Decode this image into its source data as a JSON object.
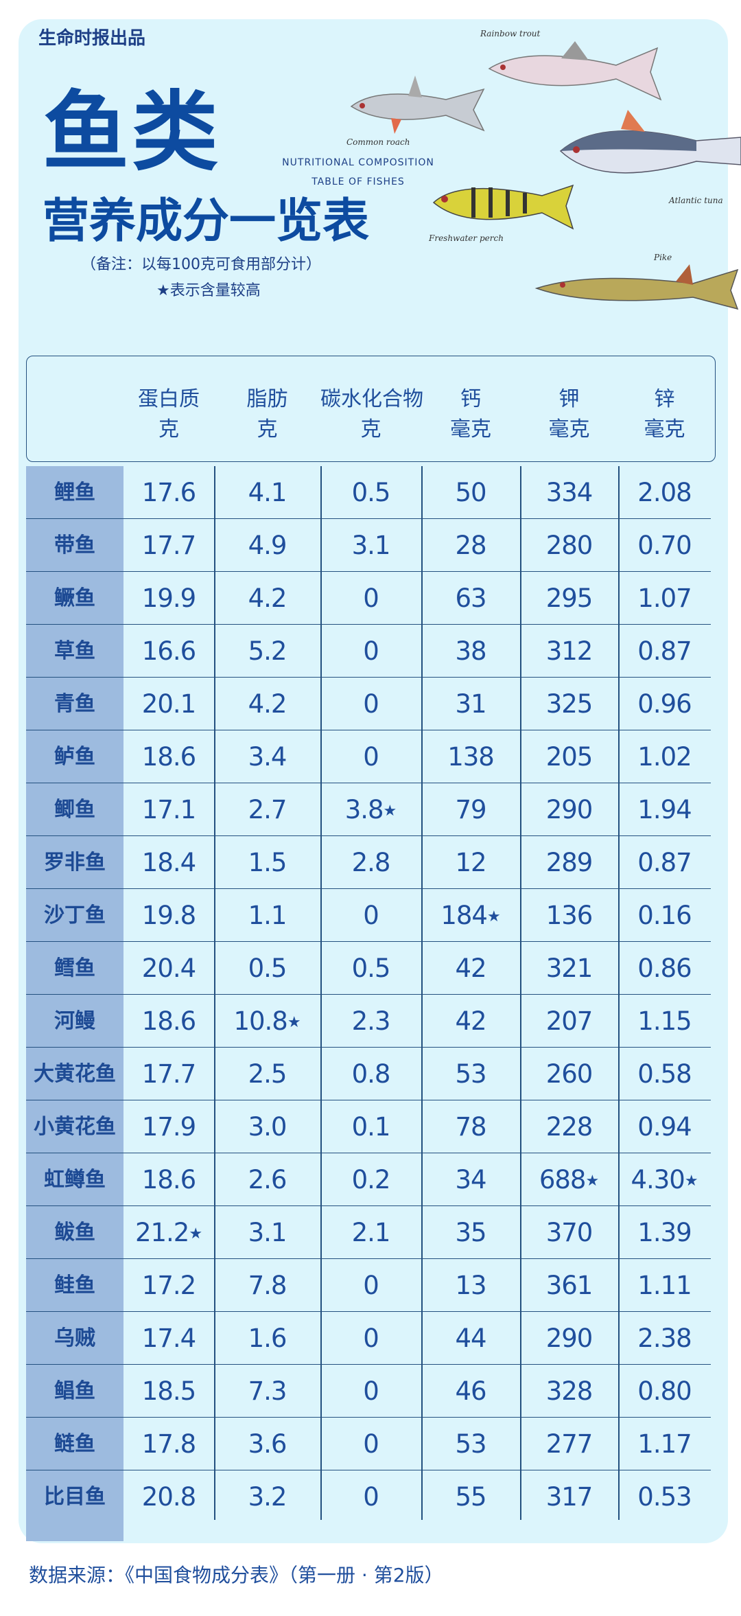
{
  "brand": "生命时报出品",
  "title": "鱼类",
  "subtitle": "营养成分一览表",
  "english_title_line1": "NUTRITIONAL COMPOSITION",
  "english_title_line2": "TABLE OF FISHES",
  "note": "（备注：以每100克可食用部分计）",
  "star_note": "★表示含量较高",
  "fish_illustrations": [
    {
      "label": "Rainbow trout",
      "icon": "rainbow-trout-illustration"
    },
    {
      "label": "Common roach",
      "icon": "common-roach-illustration"
    },
    {
      "label": "Atlantic tuna",
      "icon": "atlantic-tuna-illustration"
    },
    {
      "label": "Freshwater perch",
      "icon": "freshwater-perch-illustration"
    },
    {
      "label": "Pike",
      "icon": "pike-illustration"
    }
  ],
  "columns": [
    {
      "name": "蛋白质",
      "unit": "克"
    },
    {
      "name": "脂肪",
      "unit": "克"
    },
    {
      "name": "碳水化合物",
      "unit": "克"
    },
    {
      "name": "钙",
      "unit": "毫克"
    },
    {
      "name": "钾",
      "unit": "毫克"
    },
    {
      "name": "锌",
      "unit": "毫克"
    }
  ],
  "rows": [
    {
      "name": "鲤鱼",
      "values": [
        "17.6",
        "4.1",
        "0.5",
        "50",
        "334",
        "2.08"
      ],
      "starred": []
    },
    {
      "name": "带鱼",
      "values": [
        "17.7",
        "4.9",
        "3.1",
        "28",
        "280",
        "0.70"
      ],
      "starred": []
    },
    {
      "name": "鳜鱼",
      "values": [
        "19.9",
        "4.2",
        "0",
        "63",
        "295",
        "1.07"
      ],
      "starred": []
    },
    {
      "name": "草鱼",
      "values": [
        "16.6",
        "5.2",
        "0",
        "38",
        "312",
        "0.87"
      ],
      "starred": []
    },
    {
      "name": "青鱼",
      "values": [
        "20.1",
        "4.2",
        "0",
        "31",
        "325",
        "0.96"
      ],
      "starred": []
    },
    {
      "name": "鲈鱼",
      "values": [
        "18.6",
        "3.4",
        "0",
        "138",
        "205",
        "1.02"
      ],
      "starred": []
    },
    {
      "name": "鲫鱼",
      "values": [
        "17.1",
        "2.7",
        "3.8",
        "79",
        "290",
        "1.94"
      ],
      "starred": [
        2
      ]
    },
    {
      "name": "罗非鱼",
      "values": [
        "18.4",
        "1.5",
        "2.8",
        "12",
        "289",
        "0.87"
      ],
      "starred": []
    },
    {
      "name": "沙丁鱼",
      "values": [
        "19.8",
        "1.1",
        "0",
        "184",
        "136",
        "0.16"
      ],
      "starred": [
        3
      ]
    },
    {
      "name": "鳕鱼",
      "values": [
        "20.4",
        "0.5",
        "0.5",
        "42",
        "321",
        "0.86"
      ],
      "starred": []
    },
    {
      "name": "河鳗",
      "values": [
        "18.6",
        "10.8",
        "2.3",
        "42",
        "207",
        "1.15"
      ],
      "starred": [
        1
      ]
    },
    {
      "name": "大黄花鱼",
      "values": [
        "17.7",
        "2.5",
        "0.8",
        "53",
        "260",
        "0.58"
      ],
      "starred": []
    },
    {
      "name": "小黄花鱼",
      "values": [
        "17.9",
        "3.0",
        "0.1",
        "78",
        "228",
        "0.94"
      ],
      "starred": []
    },
    {
      "name": "虹鳟鱼",
      "values": [
        "18.6",
        "2.6",
        "0.2",
        "34",
        "688",
        "4.30"
      ],
      "starred": [
        4,
        5
      ]
    },
    {
      "name": "鲅鱼",
      "values": [
        "21.2",
        "3.1",
        "2.1",
        "35",
        "370",
        "1.39"
      ],
      "starred": [
        0
      ]
    },
    {
      "name": "鲑鱼",
      "values": [
        "17.2",
        "7.8",
        "0",
        "13",
        "361",
        "1.11"
      ],
      "starred": []
    },
    {
      "name": "乌贼",
      "values": [
        "17.4",
        "1.6",
        "0",
        "44",
        "290",
        "2.38"
      ],
      "starred": []
    },
    {
      "name": "鲳鱼",
      "values": [
        "18.5",
        "7.3",
        "0",
        "46",
        "328",
        "0.80"
      ],
      "starred": []
    },
    {
      "name": "鲢鱼",
      "values": [
        "17.8",
        "3.6",
        "0",
        "53",
        "277",
        "1.17"
      ],
      "starred": []
    },
    {
      "name": "比目鱼",
      "values": [
        "20.8",
        "3.2",
        "0",
        "55",
        "317",
        "0.53"
      ],
      "starred": []
    }
  ],
  "star_symbol": "★",
  "footer": "数据来源：《中国食物成分表》（第一册 · 第2版）",
  "colors": {
    "text": "#1f4e9c",
    "title": "#0d4ba0",
    "background": "#dcf5fc",
    "name_column": "#9dbbdf",
    "grid": "#23507f"
  }
}
